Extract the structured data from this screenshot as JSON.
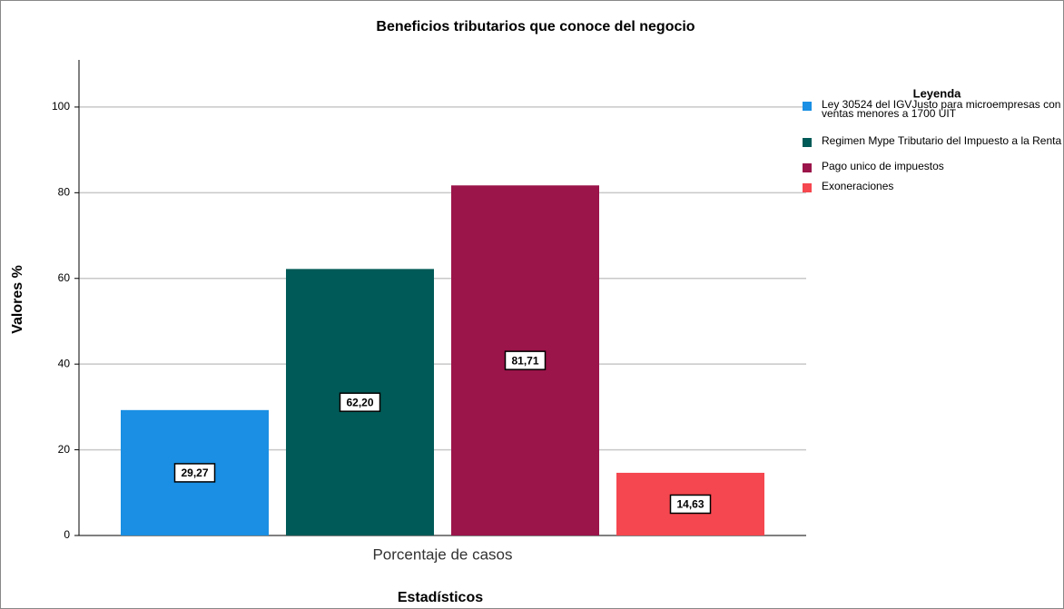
{
  "chart_data": {
    "type": "bar",
    "title": "Beneficios tributarios que conoce del negocio",
    "x_label": "Estadísticos",
    "y_label": "Valores %",
    "categories": [
      "Porcentaje de casos"
    ],
    "legend_title": "Leyenda",
    "legend_position": "right",
    "series": [
      {
        "name": "Ley 30524 del IGVJusto para microempresas con ventas menores a 1700 UIT",
        "color": "#1a8fe3",
        "values": [
          29.27
        ],
        "value_labels": [
          "29,27"
        ]
      },
      {
        "name": "Regimen Mype Tributario del Impuesto a la Renta",
        "color": "#005a57",
        "values": [
          62.2
        ],
        "value_labels": [
          "62,20"
        ]
      },
      {
        "name": "Pago unico de impuestos",
        "color": "#9b144a",
        "values": [
          81.71
        ],
        "value_labels": [
          "81,71"
        ]
      },
      {
        "name": "Exoneraciones",
        "color": "#f5474f",
        "values": [
          14.63
        ],
        "value_labels": [
          "14,63"
        ]
      }
    ],
    "ylim": [
      0,
      111
    ],
    "yticks": [
      0,
      20,
      40,
      60,
      80,
      100
    ],
    "grid": true
  }
}
